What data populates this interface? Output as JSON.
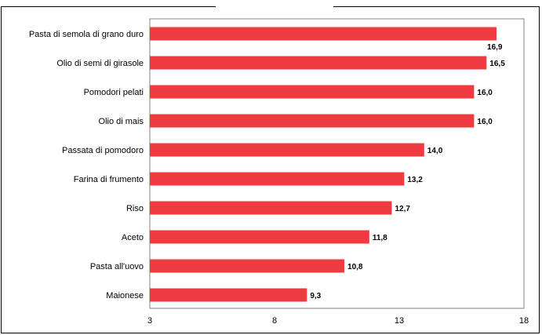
{
  "chart_data": {
    "type": "bar",
    "orientation": "horizontal",
    "categories": [
      "Pasta di semola di grano duro",
      "Olio di semi di girasole",
      "Pomodori pelati",
      "Olio di mais",
      "Passata di pomodoro",
      "Farina di frumento",
      "Riso",
      "Aceto",
      "Pasta all'uovo",
      "Maionese"
    ],
    "values": [
      16.9,
      16.5,
      16.0,
      16.0,
      14.0,
      13.2,
      12.7,
      11.8,
      10.8,
      9.3
    ],
    "value_labels": [
      "16,9",
      "16,5",
      "16,0",
      "16,0",
      "14,0",
      "13,2",
      "12,7",
      "11,8",
      "10,8",
      "9,3"
    ],
    "xlim": [
      3,
      18
    ],
    "xticks": [
      3,
      8,
      13,
      18
    ],
    "xtick_labels": [
      "3",
      "8",
      "13",
      "18"
    ],
    "grid": false,
    "legend": "none",
    "colors": {
      "bar": "#ef3a3f",
      "plot_border": "#808080",
      "text": "#000000"
    }
  }
}
